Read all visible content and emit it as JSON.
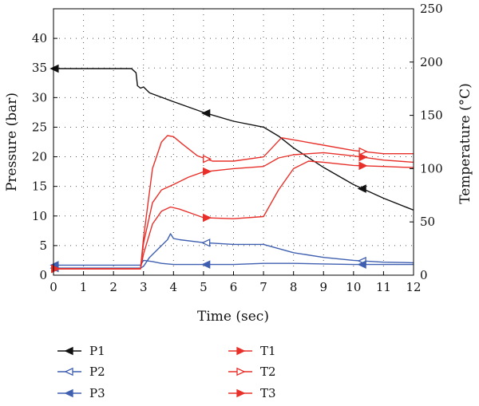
{
  "chart_data": {
    "type": "line",
    "title": "",
    "xlabel": "Time (sec)",
    "ylabel_left": "Pressure (bar)",
    "ylabel_right": "Temperature (°C)",
    "xlim": [
      0,
      12
    ],
    "ylim_left": [
      0,
      45
    ],
    "ylim_right": [
      0,
      250
    ],
    "x_ticks": [
      "0",
      "1",
      "2",
      "3",
      "4",
      "5",
      "6",
      "7",
      "8",
      "9",
      "10",
      "11",
      "12"
    ],
    "y_ticks_left": [
      "0",
      "5",
      "10",
      "15",
      "20",
      "25",
      "30",
      "35",
      "40"
    ],
    "y_ticks_right": [
      "0",
      "50",
      "100",
      "150",
      "200",
      "250"
    ],
    "grid": true,
    "legend_position": "bottom",
    "series": [
      {
        "name": "P1",
        "axis": "left",
        "color": "#111111",
        "marker": "triangle-left-filled",
        "marker_x": [
          0.05,
          5.1,
          10.3
        ],
        "x": [
          0,
          2.6,
          2.75,
          2.8,
          2.9,
          3.0,
          3.2,
          4,
          5,
          6,
          7,
          7.5,
          8,
          9,
          10,
          11,
          12
        ],
        "y": [
          34.9,
          34.9,
          34.2,
          32.0,
          31.6,
          31.8,
          30.8,
          29.3,
          27.5,
          26.0,
          25.0,
          23.5,
          21.5,
          18.2,
          15.3,
          13.0,
          11.0
        ]
      },
      {
        "name": "P2",
        "axis": "left",
        "color": "#3f5fb0",
        "marker": "triangle-left-open",
        "marker_x": [
          0.05,
          5.1,
          10.3
        ],
        "x": [
          0,
          2.9,
          3.0,
          3.2,
          3.5,
          3.8,
          3.9,
          4.0,
          4.2,
          5,
          6,
          7,
          8,
          9,
          10,
          11,
          12
        ],
        "y": [
          1.2,
          1.2,
          1.5,
          3.0,
          4.5,
          6.0,
          7.0,
          6.2,
          6.0,
          5.5,
          5.2,
          5.2,
          3.8,
          3.0,
          2.5,
          2.2,
          2.1
        ]
      },
      {
        "name": "P3",
        "axis": "left",
        "color": "#3f5fb0",
        "marker": "triangle-left-filled",
        "marker_x": [
          0.05,
          5.1,
          10.3
        ],
        "x": [
          0,
          2.9,
          3.0,
          3.3,
          3.6,
          4,
          5,
          6,
          7,
          8,
          9,
          10,
          11,
          12
        ],
        "y": [
          1.7,
          1.7,
          2.5,
          2.3,
          2.0,
          1.8,
          1.8,
          1.8,
          2.0,
          2.0,
          1.9,
          1.8,
          1.8,
          1.8
        ]
      },
      {
        "name": "T1",
        "axis": "right",
        "color": "#e8302a",
        "marker": "triangle-right-filled",
        "marker_x": [
          0.05,
          5.1,
          10.3
        ],
        "x": [
          0,
          2.9,
          3.0,
          3.3,
          3.6,
          3.9,
          4.2,
          4.6,
          5,
          6,
          7,
          7.5,
          8,
          8.5,
          9,
          10,
          11,
          12
        ],
        "y": [
          6,
          6,
          20,
          48,
          60,
          64,
          62,
          58,
          54,
          53,
          55,
          80,
          100,
          107,
          106,
          103,
          102,
          101
        ]
      },
      {
        "name": "T2",
        "axis": "right",
        "color": "#e8302a",
        "marker": "triangle-right-open",
        "marker_x": [
          0.05,
          5.1,
          10.3
        ],
        "x": [
          0,
          2.9,
          3.0,
          3.3,
          3.6,
          3.8,
          4.0,
          4.3,
          4.8,
          5.3,
          6,
          7,
          7.3,
          7.6,
          8,
          9,
          10,
          11,
          12
        ],
        "y": [
          6,
          6,
          35,
          100,
          125,
          131,
          130,
          123,
          112,
          107,
          107,
          111,
          120,
          129,
          127,
          122,
          117,
          114,
          114
        ]
      },
      {
        "name": "T3",
        "axis": "right",
        "color": "#e8302a",
        "marker": "triangle-right-filled",
        "marker_x": [
          0.05,
          5.1,
          10.3
        ],
        "x": [
          0,
          2.9,
          3.0,
          3.3,
          3.6,
          4.0,
          4.5,
          5,
          6,
          7,
          7.5,
          8,
          9,
          10,
          11,
          12
        ],
        "y": [
          6,
          6,
          30,
          68,
          80,
          85,
          92,
          97,
          100,
          102,
          110,
          113,
          115,
          112,
          108,
          106
        ]
      }
    ]
  }
}
